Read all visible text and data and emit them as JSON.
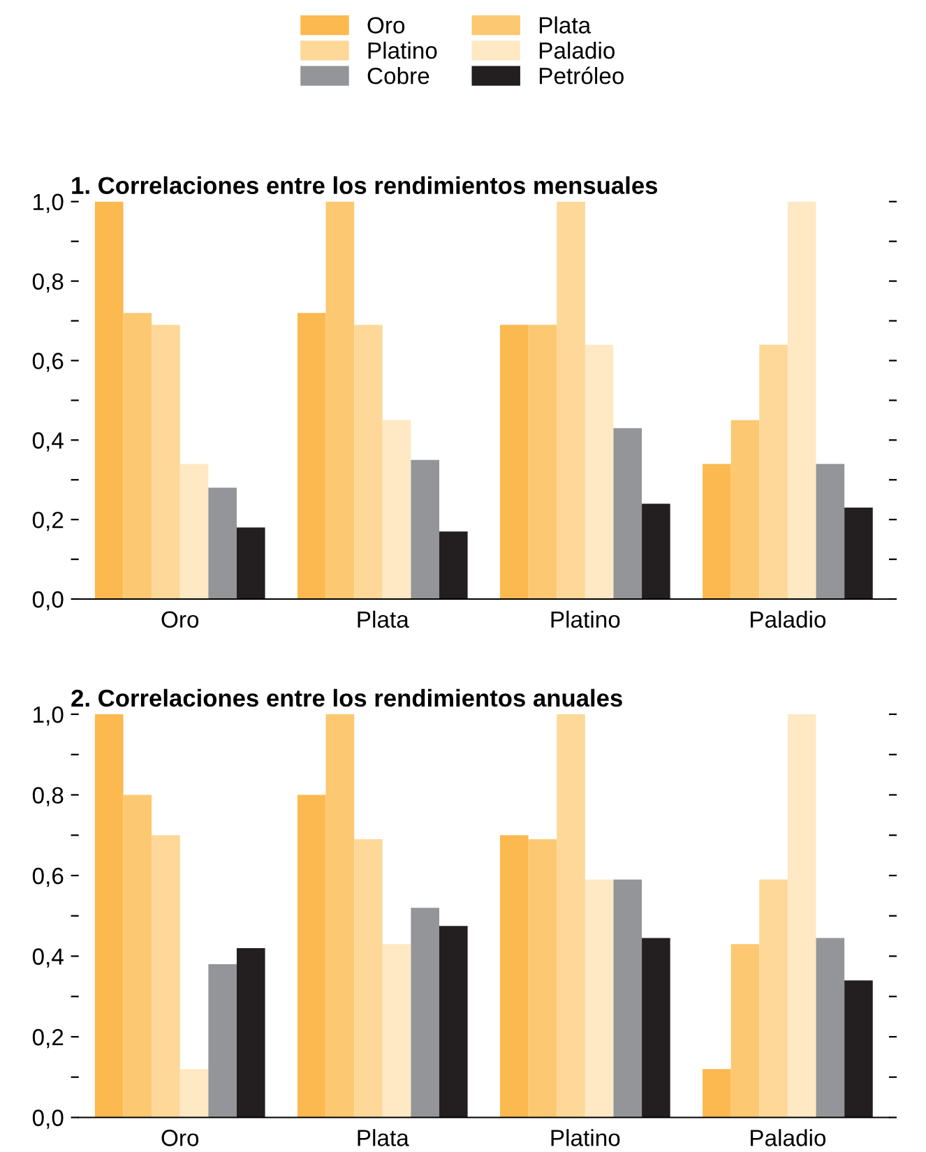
{
  "chart_data": [
    {
      "type": "bar",
      "title": "1. Correlaciones entre los rendimientos mensuales",
      "categories": [
        "Oro",
        "Plata",
        "Platino",
        "Paladio"
      ],
      "legend": "top",
      "grid": false,
      "ylim": [
        0,
        1.0
      ],
      "yticks": [
        {
          "value": 0,
          "label": "0,0"
        },
        {
          "value": 0.1,
          "label": null
        },
        {
          "value": 0.2,
          "label": "0,2"
        },
        {
          "value": 0.3,
          "label": null
        },
        {
          "value": 0.4,
          "label": "0,4"
        },
        {
          "value": 0.5,
          "label": null
        },
        {
          "value": 0.6,
          "label": "0,6"
        },
        {
          "value": 0.7,
          "label": null
        },
        {
          "value": 0.8,
          "label": "0,8"
        },
        {
          "value": 0.9,
          "label": null
        },
        {
          "value": 1.0,
          "label": "1,0"
        }
      ],
      "series": [
        {
          "name": "Oro",
          "color": "#fbb94f",
          "values": [
            1.0,
            0.72,
            0.69,
            0.34
          ]
        },
        {
          "name": "Plata",
          "color": "#fcc872",
          "values": [
            0.72,
            1.0,
            0.69,
            0.45
          ]
        },
        {
          "name": "Platino",
          "color": "#fdd898",
          "values": [
            0.69,
            0.69,
            1.0,
            0.64
          ]
        },
        {
          "name": "Paladio",
          "color": "#fee9c4",
          "values": [
            0.34,
            0.45,
            0.64,
            1.0
          ]
        },
        {
          "name": "Cobre",
          "color": "#939598",
          "values": [
            0.28,
            0.35,
            0.43,
            0.34
          ]
        },
        {
          "name": "Petróleo",
          "color": "#231f20",
          "values": [
            0.18,
            0.17,
            0.24,
            0.23
          ]
        }
      ]
    },
    {
      "type": "bar",
      "title": "2. Correlaciones entre los rendimientos anuales",
      "categories": [
        "Oro",
        "Plata",
        "Platino",
        "Paladio"
      ],
      "grid": false,
      "ylim": [
        0,
        1.0
      ],
      "yticks": [
        {
          "value": 0,
          "label": "0,0"
        },
        {
          "value": 0.1,
          "label": null
        },
        {
          "value": 0.2,
          "label": "0,2"
        },
        {
          "value": 0.3,
          "label": null
        },
        {
          "value": 0.4,
          "label": "0,4"
        },
        {
          "value": 0.5,
          "label": null
        },
        {
          "value": 0.6,
          "label": "0,6"
        },
        {
          "value": 0.7,
          "label": null
        },
        {
          "value": 0.8,
          "label": "0,8"
        },
        {
          "value": 0.9,
          "label": null
        },
        {
          "value": 1.0,
          "label": "1,0"
        }
      ],
      "series": [
        {
          "color": "#fbb94f",
          "values": [
            1.0,
            0.8,
            0.7,
            0.12
          ]
        },
        {
          "color": "#fcc872",
          "values": [
            0.8,
            1.0,
            0.69,
            0.43
          ]
        },
        {
          "color": "#fdd898",
          "values": [
            0.7,
            0.69,
            1.0,
            0.59
          ]
        },
        {
          "color": "#fee9c4",
          "values": [
            0.12,
            0.43,
            0.59,
            1.0
          ]
        },
        {
          "color": "#939598",
          "values": [
            0.38,
            0.52,
            0.59,
            0.445
          ]
        },
        {
          "color": "#231f20",
          "values": [
            0.42,
            0.475,
            0.445,
            0.34
          ]
        }
      ]
    }
  ]
}
